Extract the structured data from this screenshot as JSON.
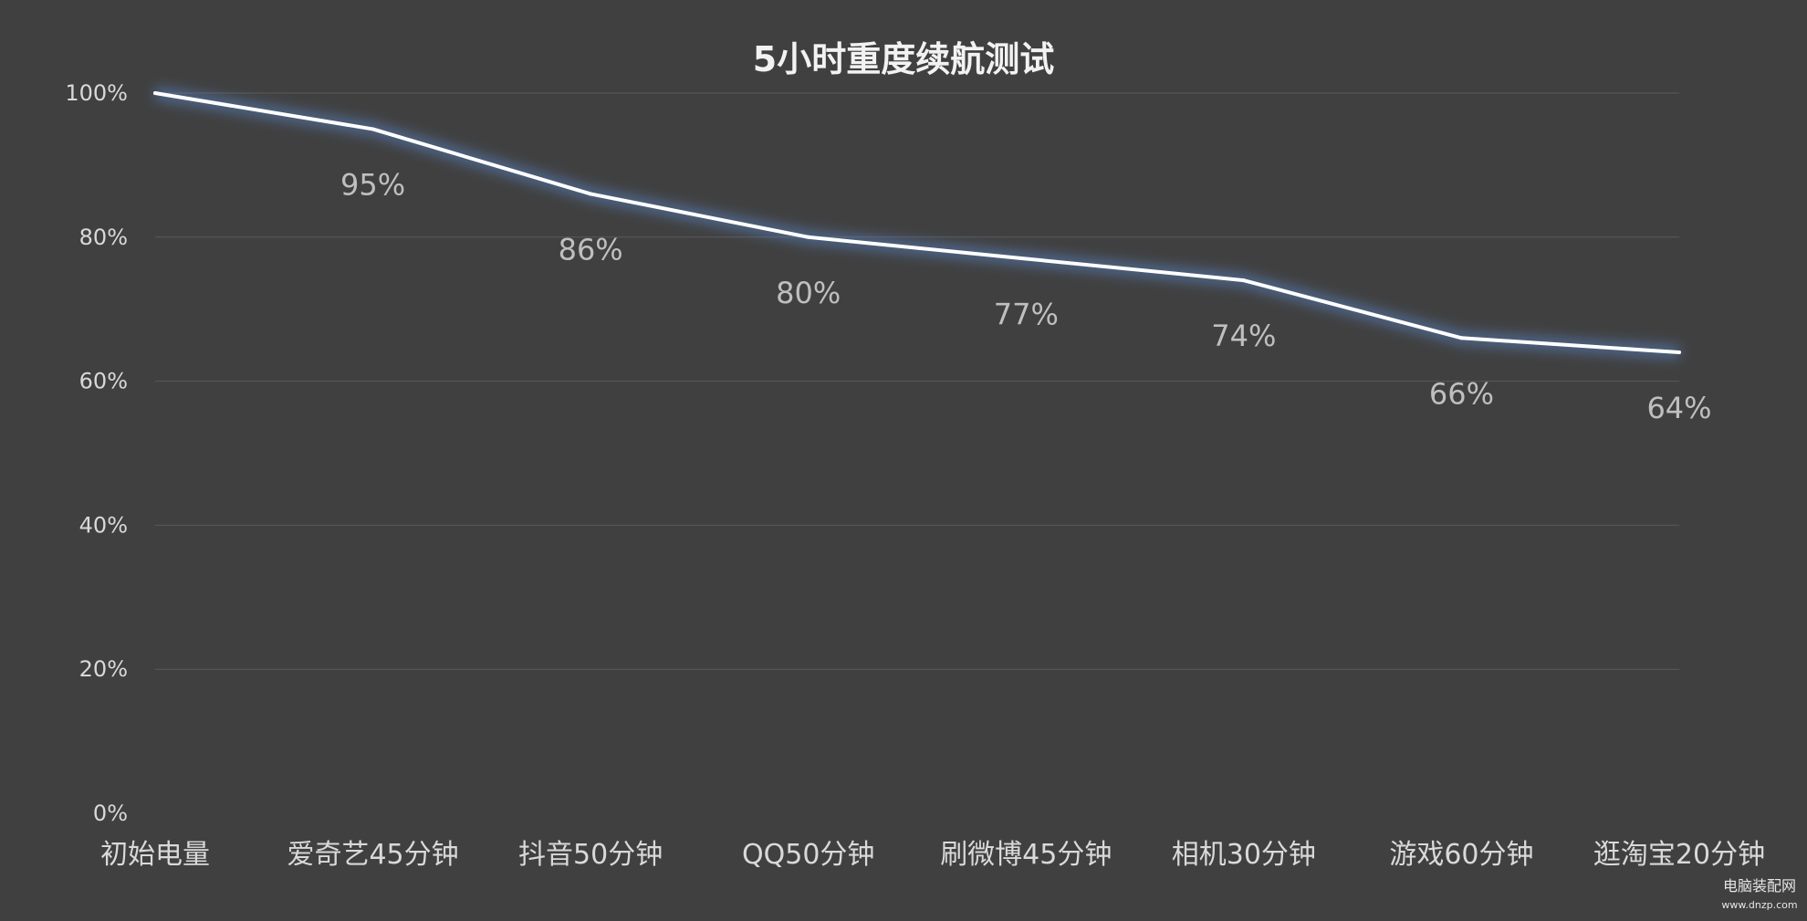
{
  "chart_data": {
    "type": "line",
    "title": "5小时重度续航测试",
    "xlabel": "",
    "ylabel": "",
    "categories": [
      "初始电量",
      "爱奇艺45分钟",
      "抖音50分钟",
      "QQ50分钟",
      "刷微博45分钟",
      "相机30分钟",
      "游戏60分钟",
      "逛淘宝20分钟"
    ],
    "series": [
      {
        "values": [
          100,
          95,
          86,
          80,
          77,
          74,
          66,
          64
        ]
      }
    ],
    "data_labels": [
      "",
      "95%",
      "86%",
      "80%",
      "77%",
      "74%",
      "66%",
      "64%"
    ],
    "ylim": [
      0,
      100
    ],
    "yticks": [
      0,
      20,
      40,
      60,
      80,
      100
    ],
    "ytick_labels": [
      "0%",
      "20%",
      "40%",
      "60%",
      "80%",
      "100%"
    ],
    "grid": true,
    "legend": "none",
    "colors": {
      "background": "#404040",
      "line": "#ffffff",
      "glow": "#5b8bd4",
      "grid": "#5a5a5a"
    }
  },
  "watermark": {
    "line1": "电脑装配网",
    "line2": "www.dnzp.com"
  }
}
